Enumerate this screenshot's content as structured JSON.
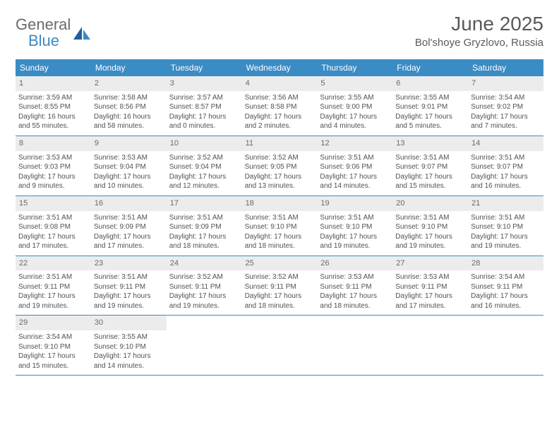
{
  "brand": {
    "word1": "General",
    "word2": "Blue"
  },
  "header": {
    "title": "June 2025",
    "location": "Bol'shoye Gryzlovo, Russia"
  },
  "colors": {
    "header_bar": "#3b8bc4",
    "daynum_bg": "#ececec",
    "text": "#525252",
    "title_text": "#5a5a5a"
  },
  "dow": [
    "Sunday",
    "Monday",
    "Tuesday",
    "Wednesday",
    "Thursday",
    "Friday",
    "Saturday"
  ],
  "days": [
    {
      "n": 1,
      "sunrise": "3:59 AM",
      "sunset": "8:55 PM",
      "daylight": "16 hours and 55 minutes."
    },
    {
      "n": 2,
      "sunrise": "3:58 AM",
      "sunset": "8:56 PM",
      "daylight": "16 hours and 58 minutes."
    },
    {
      "n": 3,
      "sunrise": "3:57 AM",
      "sunset": "8:57 PM",
      "daylight": "17 hours and 0 minutes."
    },
    {
      "n": 4,
      "sunrise": "3:56 AM",
      "sunset": "8:58 PM",
      "daylight": "17 hours and 2 minutes."
    },
    {
      "n": 5,
      "sunrise": "3:55 AM",
      "sunset": "9:00 PM",
      "daylight": "17 hours and 4 minutes."
    },
    {
      "n": 6,
      "sunrise": "3:55 AM",
      "sunset": "9:01 PM",
      "daylight": "17 hours and 5 minutes."
    },
    {
      "n": 7,
      "sunrise": "3:54 AM",
      "sunset": "9:02 PM",
      "daylight": "17 hours and 7 minutes."
    },
    {
      "n": 8,
      "sunrise": "3:53 AM",
      "sunset": "9:03 PM",
      "daylight": "17 hours and 9 minutes."
    },
    {
      "n": 9,
      "sunrise": "3:53 AM",
      "sunset": "9:04 PM",
      "daylight": "17 hours and 10 minutes."
    },
    {
      "n": 10,
      "sunrise": "3:52 AM",
      "sunset": "9:04 PM",
      "daylight": "17 hours and 12 minutes."
    },
    {
      "n": 11,
      "sunrise": "3:52 AM",
      "sunset": "9:05 PM",
      "daylight": "17 hours and 13 minutes."
    },
    {
      "n": 12,
      "sunrise": "3:51 AM",
      "sunset": "9:06 PM",
      "daylight": "17 hours and 14 minutes."
    },
    {
      "n": 13,
      "sunrise": "3:51 AM",
      "sunset": "9:07 PM",
      "daylight": "17 hours and 15 minutes."
    },
    {
      "n": 14,
      "sunrise": "3:51 AM",
      "sunset": "9:07 PM",
      "daylight": "17 hours and 16 minutes."
    },
    {
      "n": 15,
      "sunrise": "3:51 AM",
      "sunset": "9:08 PM",
      "daylight": "17 hours and 17 minutes."
    },
    {
      "n": 16,
      "sunrise": "3:51 AM",
      "sunset": "9:09 PM",
      "daylight": "17 hours and 17 minutes."
    },
    {
      "n": 17,
      "sunrise": "3:51 AM",
      "sunset": "9:09 PM",
      "daylight": "17 hours and 18 minutes."
    },
    {
      "n": 18,
      "sunrise": "3:51 AM",
      "sunset": "9:10 PM",
      "daylight": "17 hours and 18 minutes."
    },
    {
      "n": 19,
      "sunrise": "3:51 AM",
      "sunset": "9:10 PM",
      "daylight": "17 hours and 19 minutes."
    },
    {
      "n": 20,
      "sunrise": "3:51 AM",
      "sunset": "9:10 PM",
      "daylight": "17 hours and 19 minutes."
    },
    {
      "n": 21,
      "sunrise": "3:51 AM",
      "sunset": "9:10 PM",
      "daylight": "17 hours and 19 minutes."
    },
    {
      "n": 22,
      "sunrise": "3:51 AM",
      "sunset": "9:11 PM",
      "daylight": "17 hours and 19 minutes."
    },
    {
      "n": 23,
      "sunrise": "3:51 AM",
      "sunset": "9:11 PM",
      "daylight": "17 hours and 19 minutes."
    },
    {
      "n": 24,
      "sunrise": "3:52 AM",
      "sunset": "9:11 PM",
      "daylight": "17 hours and 19 minutes."
    },
    {
      "n": 25,
      "sunrise": "3:52 AM",
      "sunset": "9:11 PM",
      "daylight": "17 hours and 18 minutes."
    },
    {
      "n": 26,
      "sunrise": "3:53 AM",
      "sunset": "9:11 PM",
      "daylight": "17 hours and 18 minutes."
    },
    {
      "n": 27,
      "sunrise": "3:53 AM",
      "sunset": "9:11 PM",
      "daylight": "17 hours and 17 minutes."
    },
    {
      "n": 28,
      "sunrise": "3:54 AM",
      "sunset": "9:11 PM",
      "daylight": "17 hours and 16 minutes."
    },
    {
      "n": 29,
      "sunrise": "3:54 AM",
      "sunset": "9:10 PM",
      "daylight": "17 hours and 15 minutes."
    },
    {
      "n": 30,
      "sunrise": "3:55 AM",
      "sunset": "9:10 PM",
      "daylight": "17 hours and 14 minutes."
    }
  ],
  "labels": {
    "sunrise": "Sunrise:",
    "sunset": "Sunset:",
    "daylight": "Daylight:"
  },
  "layout": {
    "first_dow_index": 0,
    "weeks": 5,
    "cols": 7
  }
}
